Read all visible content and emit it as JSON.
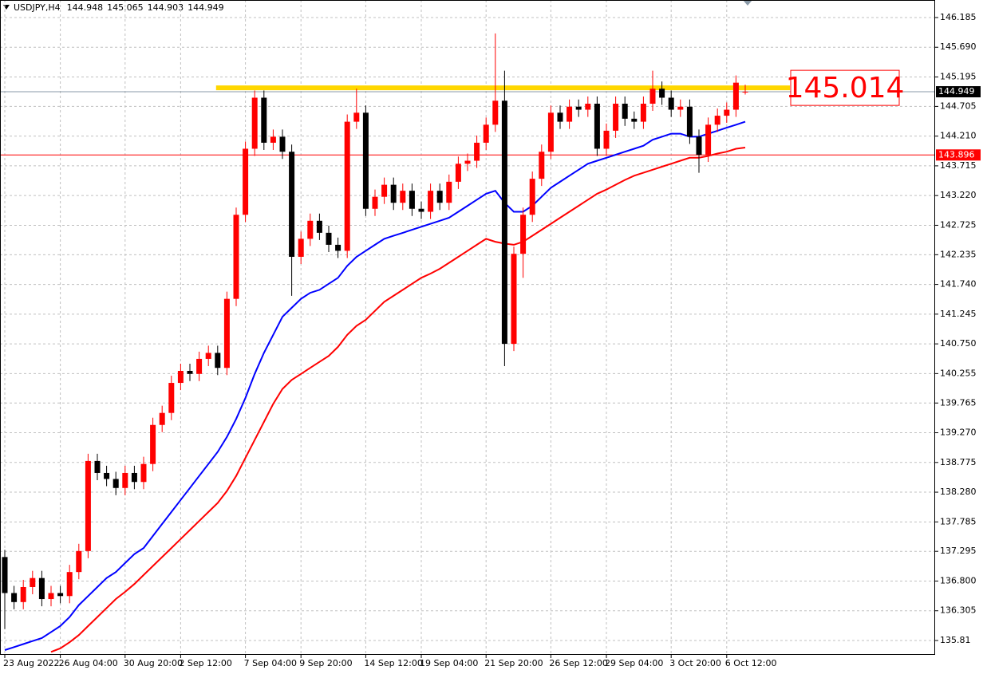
{
  "chart_data": {
    "type": "candlestick",
    "symbol": "USDJPY,H4",
    "open": [
      137.2,
      136.6,
      136.45,
      136.7,
      136.85,
      136.5,
      136.6,
      136.55,
      136.95,
      137.3,
      138.8,
      138.6,
      138.5,
      138.35,
      138.6,
      138.45,
      138.75,
      139.4,
      139.6,
      140.1,
      140.3,
      140.25,
      140.5,
      140.6,
      140.35,
      141.5,
      142.9,
      144.0,
      144.85,
      144.1,
      144.2,
      143.95,
      142.2,
      142.5,
      142.8,
      142.6,
      142.4,
      142.3,
      144.45,
      144.6,
      143.0,
      143.2,
      143.4,
      143.1,
      143.3,
      143.0,
      142.95,
      143.3,
      143.1,
      143.45,
      143.75,
      143.8,
      144.1,
      144.4,
      144.8,
      140.75,
      142.25,
      142.9,
      143.5,
      143.95,
      144.6,
      144.45,
      144.7,
      144.65,
      144.75,
      144.0,
      144.3,
      144.75,
      144.5,
      144.45,
      144.75,
      145.0,
      144.85,
      144.65,
      144.7,
      144.2,
      143.9,
      144.4,
      144.55,
      144.65,
      144.948
    ],
    "high": [
      137.32,
      136.72,
      136.82,
      136.97,
      136.97,
      136.72,
      136.72,
      137.07,
      137.42,
      138.92,
      138.92,
      138.72,
      138.62,
      138.72,
      138.72,
      138.87,
      139.52,
      139.72,
      140.22,
      140.42,
      140.42,
      140.62,
      140.72,
      140.72,
      141.62,
      143.02,
      144.12,
      144.97,
      144.97,
      144.32,
      144.32,
      144.07,
      142.62,
      142.92,
      142.92,
      142.72,
      142.52,
      144.57,
      145.0,
      144.72,
      143.32,
      143.52,
      143.52,
      143.42,
      143.42,
      143.12,
      143.42,
      143.42,
      143.57,
      143.87,
      143.92,
      144.22,
      144.52,
      145.92,
      145.3,
      142.37,
      143.02,
      143.62,
      144.07,
      144.72,
      144.72,
      144.82,
      144.82,
      144.87,
      144.87,
      144.42,
      144.87,
      144.87,
      144.62,
      144.87,
      145.3,
      145.12,
      144.97,
      144.82,
      144.82,
      144.32,
      144.52,
      144.67,
      144.77,
      145.22,
      145.065
    ],
    "low": [
      136.0,
      136.33,
      136.33,
      136.58,
      136.38,
      136.38,
      136.43,
      136.43,
      136.83,
      137.18,
      138.48,
      138.38,
      138.23,
      138.23,
      138.33,
      138.33,
      138.63,
      139.28,
      139.48,
      139.98,
      140.13,
      140.13,
      140.38,
      140.23,
      140.23,
      141.38,
      142.78,
      143.88,
      143.98,
      143.98,
      143.83,
      141.55,
      142.08,
      142.38,
      142.48,
      142.28,
      142.18,
      142.18,
      144.33,
      142.88,
      142.88,
      143.08,
      142.98,
      142.98,
      142.88,
      142.83,
      142.83,
      142.98,
      142.98,
      143.33,
      143.63,
      143.68,
      143.98,
      144.28,
      140.38,
      140.63,
      141.85,
      142.78,
      143.38,
      143.83,
      144.33,
      144.33,
      144.53,
      144.53,
      143.88,
      143.88,
      144.18,
      144.38,
      144.33,
      144.33,
      144.63,
      144.73,
      144.53,
      144.53,
      144.08,
      143.6,
      143.78,
      144.28,
      144.43,
      144.53,
      144.903
    ],
    "close": [
      136.6,
      136.45,
      136.7,
      136.85,
      136.5,
      136.6,
      136.55,
      136.95,
      137.3,
      138.8,
      138.6,
      138.5,
      138.35,
      138.6,
      138.45,
      138.75,
      139.4,
      139.6,
      140.1,
      140.3,
      140.25,
      140.5,
      140.6,
      140.35,
      141.5,
      142.9,
      144.0,
      144.85,
      144.1,
      144.2,
      143.95,
      142.2,
      142.5,
      142.8,
      142.6,
      142.4,
      142.3,
      144.45,
      144.6,
      143.0,
      143.2,
      143.4,
      143.1,
      143.3,
      143.0,
      142.95,
      143.3,
      143.1,
      143.45,
      143.75,
      143.8,
      144.1,
      144.4,
      144.8,
      140.75,
      142.25,
      142.9,
      143.5,
      143.95,
      144.6,
      144.45,
      144.7,
      144.65,
      144.75,
      144.0,
      144.3,
      144.75,
      144.5,
      144.45,
      144.75,
      145.0,
      144.85,
      144.65,
      144.7,
      144.2,
      143.9,
      144.4,
      144.55,
      144.65,
      145.1,
      144.949
    ],
    "up_color": "#ff0000",
    "down_color": "#000000",
    "ma_lines": [
      {
        "color": "#0000ff",
        "values": [
          135.65,
          135.7,
          135.75,
          135.8,
          135.85,
          135.95,
          136.05,
          136.2,
          136.4,
          136.55,
          136.7,
          136.85,
          136.95,
          137.1,
          137.25,
          137.35,
          137.55,
          137.75,
          137.95,
          138.15,
          138.35,
          138.55,
          138.75,
          138.95,
          139.2,
          139.5,
          139.85,
          140.25,
          140.6,
          140.9,
          141.2,
          141.35,
          141.5,
          141.6,
          141.65,
          141.75,
          141.85,
          142.05,
          142.2,
          142.3,
          142.4,
          142.5,
          142.55,
          142.6,
          142.65,
          142.7,
          142.75,
          142.8,
          142.85,
          142.95,
          143.05,
          143.15,
          143.25,
          143.3,
          143.1,
          142.95,
          142.95,
          143.05,
          143.2,
          143.35,
          143.45,
          143.55,
          143.65,
          143.75,
          143.8,
          143.85,
          143.9,
          143.95,
          144.0,
          144.05,
          144.15,
          144.2,
          144.25,
          144.25,
          144.2,
          144.2,
          144.25,
          144.3,
          144.35,
          144.4,
          144.45
        ]
      },
      {
        "color": "#ff0000",
        "values": [
          null,
          null,
          null,
          null,
          null,
          135.62,
          135.68,
          135.78,
          135.9,
          136.05,
          136.2,
          136.35,
          136.5,
          136.62,
          136.75,
          136.9,
          137.05,
          137.2,
          137.35,
          137.5,
          137.65,
          137.8,
          137.95,
          138.1,
          138.3,
          138.55,
          138.85,
          139.15,
          139.45,
          139.75,
          140.0,
          140.15,
          140.25,
          140.35,
          140.45,
          140.55,
          140.7,
          140.9,
          141.05,
          141.15,
          141.3,
          141.45,
          141.55,
          141.65,
          141.75,
          141.85,
          141.92,
          142.0,
          142.1,
          142.2,
          142.3,
          142.4,
          142.5,
          142.45,
          142.42,
          142.4,
          142.45,
          142.55,
          142.65,
          142.75,
          142.85,
          142.95,
          143.05,
          143.15,
          143.25,
          143.32,
          143.4,
          143.48,
          143.55,
          143.6,
          143.65,
          143.7,
          143.75,
          143.8,
          143.85,
          143.85,
          143.88,
          143.92,
          143.95,
          144.0,
          144.02
        ]
      }
    ],
    "levels": [
      {
        "value": 145.014,
        "color": "#ffd700",
        "style": "annotation"
      },
      {
        "value": 144.949,
        "color": "#8a9aa8",
        "style": "price"
      },
      {
        "value": 143.896,
        "color": "#ff0000",
        "style": "price"
      }
    ],
    "xlim": [
      -0.1,
      100.5
    ],
    "xticks": [
      {
        "value": 0,
        "label": "23 Aug 2022"
      },
      {
        "value": 6,
        "label": "26 Aug 04:00"
      },
      {
        "value": 13,
        "label": "30 Aug 20:00"
      },
      {
        "value": 19,
        "label": "2 Sep 12:00"
      },
      {
        "value": 26,
        "label": "7 Sep 04:00"
      },
      {
        "value": 32,
        "label": "9 Sep 20:00"
      },
      {
        "value": 39,
        "label": "14 Sep 12:00"
      },
      {
        "value": 45,
        "label": "19 Sep 04:00"
      },
      {
        "value": 52,
        "label": "21 Sep 20:00"
      },
      {
        "value": 59,
        "label": "26 Sep 12:00"
      },
      {
        "value": 65,
        "label": "29 Sep 04:00"
      },
      {
        "value": 72,
        "label": "3 Oct 20:00"
      },
      {
        "value": 78,
        "label": "6 Oct 12:00"
      }
    ],
    "ylim": [
      135.584,
      146.477
    ],
    "yticks": [
      146.185,
      {
        "value": 145.69,
        "label": "145.690"
      },
      145.195,
      144.705,
      {
        "value": 144.21,
        "label": "144.210"
      },
      143.715,
      {
        "value": 143.22,
        "label": "143.220"
      },
      142.725,
      142.235,
      {
        "value": 141.74,
        "label": "141.740"
      },
      141.245,
      {
        "value": 140.75,
        "label": "140.750"
      },
      140.255,
      139.765,
      {
        "value": 139.27,
        "label": "139.270"
      },
      138.775,
      {
        "value": 138.28,
        "label": "138.280"
      },
      137.785,
      137.295,
      {
        "value": 136.8,
        "label": "136.800"
      },
      136.305,
      135.81
    ],
    "grid": true
  }
}
